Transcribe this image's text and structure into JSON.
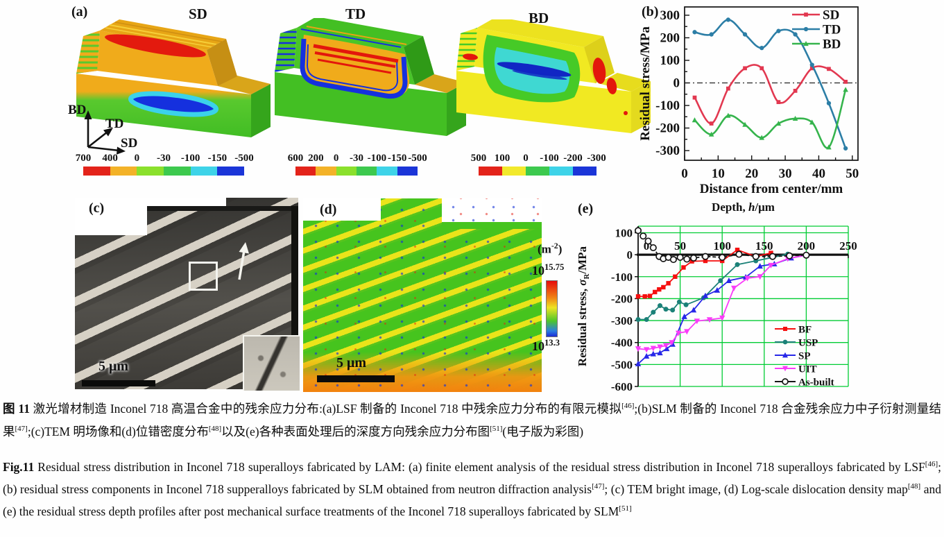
{
  "panel_a": {
    "label": "(a)",
    "block_titles": [
      "SD",
      "TD",
      "BD"
    ],
    "triad": {
      "up": "BD",
      "mid": "TD",
      "low": "SD"
    },
    "colorbars": [
      {
        "labels": [
          "700",
          "400",
          "0",
          "-30",
          "-100",
          "-150",
          "-500"
        ],
        "colors": [
          "#e3231a",
          "#f3b228",
          "#8ae02c",
          "#3dc94e",
          "#3ed3e8",
          "#1b35d8"
        ]
      },
      {
        "labels": [
          "600",
          "200",
          "0",
          "-30",
          "-100",
          "-150",
          "-500"
        ],
        "colors": [
          "#e3231a",
          "#f3b228",
          "#8ae02c",
          "#3dc94e",
          "#3ed3e8",
          "#1b35d8"
        ]
      },
      {
        "labels": [
          "500",
          "100",
          "0",
          "-100",
          "-200",
          "-300"
        ],
        "colors": [
          "#e3231a",
          "#f2e92c",
          "#3dc94e",
          "#3ed3e8",
          "#1b35d8"
        ]
      }
    ]
  },
  "panel_b": {
    "label": "(b)"
  },
  "panel_c": {
    "label": "(c)",
    "scalebar": "5 μm"
  },
  "panel_d": {
    "label": "(d)",
    "scalebar": "5 μm",
    "colorbar": {
      "unit_pre": "(m",
      "unit_sup": "-2",
      "unit_post": ")",
      "top_base": "10",
      "top_exp": "15.75",
      "bottom_base": "10",
      "bottom_exp": "13.3"
    }
  },
  "panel_e": {
    "label": "(e)"
  },
  "caption_cn": {
    "tag": "图 11",
    "s1": "  激光增材制造 Inconel 718 高温合金中的残余应力分布:(a)LSF 制备的 Inconel 718 中残余应力分布的有限元模拟",
    "r1": "[46]",
    "s2": ";(b)SLM 制备的 Inconel 718 合金残余应力中子衍射测量结果",
    "r2": "[47]",
    "s3": ";(c)TEM 明场像和(d)位错密度分布",
    "r3": "[48]",
    "s4": "以及(e)各种表面处理后的深度方向残余应力分布图",
    "r4": "[51]",
    "s5": "(电子版为彩图)"
  },
  "caption_en": {
    "tag": "Fig.11",
    "s1": "  Residual stress distribution in Inconel 718 superalloys fabricated by LAM: (a) finite element analysis of the residual stress distribution in Inconel 718 superalloys fabricated by LSF",
    "r1": "[46]",
    "s2": "; (b) residual stress components in Inconel 718 supperalloys fabricated by SLM obtained from neutron diffraction analysis",
    "r2": "[47]",
    "s3": "; (c) TEM bright image, (d) Log-scale dislocation density map",
    "r3": "[48]",
    "s4": " and (e) the residual stress depth profiles after post mechanical surface treatments of the Inconel 718 superalloys fabricated by SLM",
    "r4": "[51]"
  },
  "chart_data": [
    {
      "id": "chart-b",
      "type": "line",
      "title": "",
      "xlabel": "Distance from center/mm",
      "ylabel": "Residual stress/MPa",
      "xlim": [
        0,
        51.7
      ],
      "ylim": [
        -343,
        337
      ],
      "xticks": [
        0,
        10,
        20,
        30,
        40,
        50
      ],
      "yticks": [
        -300,
        -200,
        -100,
        0,
        100,
        200,
        300
      ],
      "zero_line": "dash-dot",
      "grid": false,
      "legend_position": "top-right",
      "series": [
        {
          "name": "SD",
          "color": "#e23850",
          "marker": "square",
          "x": [
            3,
            8,
            13,
            18,
            23,
            28,
            33,
            38,
            43,
            48
          ],
          "y": [
            -65,
            -180,
            -25,
            65,
            65,
            -85,
            -35,
            65,
            62,
            5
          ]
        },
        {
          "name": "TD",
          "color": "#2c7ea6",
          "marker": "circle",
          "x": [
            3,
            8,
            13,
            18,
            23,
            28,
            33,
            38,
            43,
            48
          ],
          "y": [
            225,
            215,
            280,
            215,
            155,
            230,
            215,
            80,
            -90,
            -290
          ]
        },
        {
          "name": "BD",
          "color": "#35b44c",
          "marker": "triangle-up",
          "x": [
            3,
            8,
            13,
            18,
            23,
            28,
            33,
            38,
            43,
            48
          ],
          "y": [
            -165,
            -228,
            -145,
            -185,
            -243,
            -180,
            -158,
            -175,
            -285,
            -30
          ]
        }
      ]
    },
    {
      "id": "chart-e",
      "type": "line",
      "title_pre": "Depth, ",
      "title_italic": "h",
      "title_post": "/μm",
      "ylabel_pre": "Residual stress, ",
      "ylabel_sym": "σ",
      "ylabel_sub": "R",
      "ylabel_post": "/MPa",
      "xlim": [
        0,
        250
      ],
      "ylim": [
        -600,
        130
      ],
      "xticks": [
        0,
        50,
        100,
        150,
        200,
        250
      ],
      "yticks": [
        -600,
        -500,
        -400,
        -300,
        -200,
        -100,
        0,
        100
      ],
      "grid": true,
      "grid_color": "#00cc33",
      "legend_position": "bottom-right",
      "series": [
        {
          "name": "BF",
          "color": "#f50f0f",
          "marker": "square",
          "x": [
            0,
            8,
            14,
            20,
            25,
            30,
            36,
            44,
            54,
            64,
            80,
            100,
            118,
            140,
            158
          ],
          "y": [
            -190,
            -190,
            -188,
            -170,
            -158,
            -148,
            -130,
            -100,
            -58,
            -30,
            -28,
            -28,
            22,
            -8,
            8
          ]
        },
        {
          "name": "USP",
          "color": "#1b8178",
          "marker": "circle",
          "x": [
            0,
            10,
            18,
            26,
            33,
            41,
            49,
            57,
            78,
            98,
            118,
            140,
            160,
            178
          ],
          "y": [
            -295,
            -295,
            -262,
            -232,
            -248,
            -252,
            -215,
            -228,
            -196,
            -118,
            -45,
            -28,
            -12,
            3
          ]
        },
        {
          "name": "SP",
          "color": "#2727e8",
          "marker": "triangle-up",
          "x": [
            0,
            10,
            18,
            26,
            34,
            41,
            55,
            66,
            80,
            94,
            108,
            128,
            145,
            162,
            182,
            200
          ],
          "y": [
            -497,
            -462,
            -452,
            -447,
            -428,
            -408,
            -282,
            -252,
            -187,
            -162,
            -118,
            -102,
            -52,
            -42,
            -15,
            -2
          ]
        },
        {
          "name": "UIT",
          "color": "#f93cf9",
          "marker": "triangle-down",
          "x": [
            0,
            10,
            18,
            26,
            33,
            40,
            48,
            58,
            70,
            85,
            100,
            114,
            130,
            145,
            158,
            178,
            200
          ],
          "y": [
            -428,
            -432,
            -426,
            -420,
            -414,
            -400,
            -357,
            -350,
            -302,
            -296,
            -288,
            -152,
            -107,
            -100,
            -48,
            -18,
            -2
          ]
        },
        {
          "name": "As-built",
          "color": "#151515",
          "marker": "circle-open",
          "dash": "5 3",
          "x": [
            0,
            6,
            12,
            18,
            25,
            30,
            36,
            42,
            50,
            58,
            66,
            80,
            100,
            120,
            140,
            160,
            180,
            200
          ],
          "y": [
            110,
            85,
            62,
            32,
            -8,
            -18,
            -12,
            -22,
            -12,
            -20,
            -15,
            -8,
            -12,
            2,
            -8,
            -8,
            -5,
            -2
          ]
        }
      ]
    }
  ]
}
